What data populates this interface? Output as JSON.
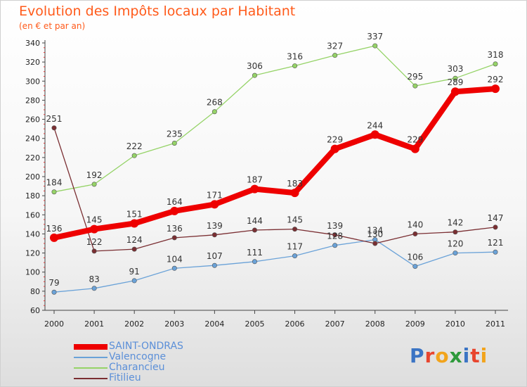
{
  "title": "Evolution des Impôts locaux par Habitant",
  "subtitle": "(en € et par an)",
  "logo": {
    "text": "Proxiti",
    "letter_colors": [
      "#3b74c4",
      "#e8452e",
      "#f2a41c",
      "#2e9a3c",
      "#3b74c4",
      "#e8452e",
      "#f2a41c"
    ]
  },
  "chart_data": {
    "type": "line",
    "title": "Evolution des Impôts locaux par Habitant",
    "subtitle": "(en € et par an)",
    "xlabel": "",
    "ylabel": "",
    "x": [
      "2000",
      "2001",
      "2002",
      "2003",
      "2004",
      "2005",
      "2006",
      "2007",
      "2008",
      "2009",
      "2010",
      "2011"
    ],
    "ylim": [
      60,
      340
    ],
    "yticks": [
      60,
      80,
      100,
      120,
      140,
      160,
      180,
      200,
      220,
      240,
      260,
      280,
      300,
      320,
      340
    ],
    "grid": false,
    "legend": "bottom-left",
    "series": [
      {
        "name": "SAINT-ONDRAS",
        "color": "#ee0000",
        "emphasis": true,
        "values": [
          136,
          145,
          151,
          164,
          171,
          187,
          183,
          229,
          244,
          229,
          289,
          292
        ]
      },
      {
        "name": "Valencogne",
        "color": "#6aa2d8",
        "values": [
          79,
          83,
          91,
          104,
          107,
          111,
          117,
          128,
          134,
          106,
          120,
          121
        ]
      },
      {
        "name": "Charancieu",
        "color": "#95d367",
        "values": [
          184,
          192,
          222,
          235,
          268,
          306,
          316,
          327,
          337,
          295,
          303,
          318
        ]
      },
      {
        "name": "Fitilieu",
        "color": "#7a2e32",
        "values": [
          251,
          122,
          124,
          136,
          139,
          144,
          145,
          139,
          130,
          140,
          142,
          147
        ]
      }
    ]
  }
}
